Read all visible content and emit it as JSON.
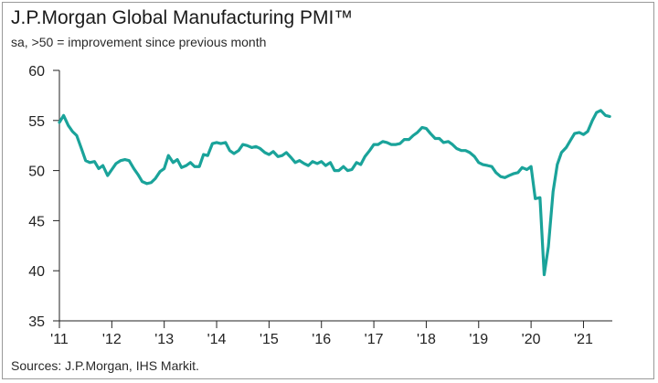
{
  "title": "J.P.Morgan Global Manufacturing PMI™",
  "subtitle": "sa, >50 = improvement since previous month",
  "source": "Sources: J.P.Morgan, IHS Markit.",
  "colors": {
    "line": "#1aa39a",
    "axis": "#222222",
    "frame": "#9a9a9a"
  },
  "chart_data": {
    "type": "line",
    "title": "J.P.Morgan Global Manufacturing PMI™",
    "subtitle": "sa, >50 = improvement since previous month",
    "xlabel": "",
    "ylabel": "",
    "ylim": [
      35,
      60
    ],
    "xlim": [
      2011.0,
      2021.55
    ],
    "yticks": [
      35,
      40,
      45,
      50,
      55,
      60
    ],
    "xticks": [
      {
        "value": 2011,
        "label": "'11"
      },
      {
        "value": 2012,
        "label": "'12"
      },
      {
        "value": 2013,
        "label": "'13"
      },
      {
        "value": 2014,
        "label": "'14"
      },
      {
        "value": 2015,
        "label": "'15"
      },
      {
        "value": 2016,
        "label": "'16"
      },
      {
        "value": 2017,
        "label": "'17"
      },
      {
        "value": 2018,
        "label": "'18"
      },
      {
        "value": 2019,
        "label": "'19"
      },
      {
        "value": 2020,
        "label": "'20"
      },
      {
        "value": 2021,
        "label": "'21"
      }
    ],
    "grid": false,
    "legend": "none",
    "series": [
      {
        "points": [
          [
            2011.0,
            54.8
          ],
          [
            2011.08,
            55.5
          ],
          [
            2011.17,
            54.5
          ],
          [
            2011.25,
            53.9
          ],
          [
            2011.33,
            53.5
          ],
          [
            2011.42,
            52.2
          ],
          [
            2011.5,
            51.0
          ],
          [
            2011.58,
            50.8
          ],
          [
            2011.67,
            50.9
          ],
          [
            2011.75,
            50.2
          ],
          [
            2011.83,
            50.5
          ],
          [
            2011.92,
            49.5
          ],
          [
            2012.0,
            50.1
          ],
          [
            2012.08,
            50.7
          ],
          [
            2012.17,
            51.0
          ],
          [
            2012.25,
            51.1
          ],
          [
            2012.33,
            51.0
          ],
          [
            2012.42,
            50.2
          ],
          [
            2012.5,
            49.6
          ],
          [
            2012.58,
            48.9
          ],
          [
            2012.67,
            48.7
          ],
          [
            2012.75,
            48.8
          ],
          [
            2012.83,
            49.2
          ],
          [
            2012.92,
            49.9
          ],
          [
            2013.0,
            50.2
          ],
          [
            2013.08,
            51.5
          ],
          [
            2013.17,
            50.8
          ],
          [
            2013.25,
            51.1
          ],
          [
            2013.33,
            50.3
          ],
          [
            2013.42,
            50.5
          ],
          [
            2013.5,
            50.8
          ],
          [
            2013.58,
            50.4
          ],
          [
            2013.67,
            50.4
          ],
          [
            2013.75,
            51.6
          ],
          [
            2013.83,
            51.5
          ],
          [
            2013.92,
            52.7
          ],
          [
            2014.0,
            52.8
          ],
          [
            2014.08,
            52.7
          ],
          [
            2014.17,
            52.8
          ],
          [
            2014.25,
            52.0
          ],
          [
            2014.33,
            51.7
          ],
          [
            2014.42,
            52.0
          ],
          [
            2014.5,
            52.6
          ],
          [
            2014.58,
            52.5
          ],
          [
            2014.67,
            52.3
          ],
          [
            2014.75,
            52.4
          ],
          [
            2014.83,
            52.2
          ],
          [
            2014.92,
            51.8
          ],
          [
            2015.0,
            51.6
          ],
          [
            2015.08,
            51.9
          ],
          [
            2015.17,
            51.4
          ],
          [
            2015.25,
            51.5
          ],
          [
            2015.33,
            51.8
          ],
          [
            2015.42,
            51.3
          ],
          [
            2015.5,
            50.8
          ],
          [
            2015.58,
            51.0
          ],
          [
            2015.67,
            50.7
          ],
          [
            2015.75,
            50.5
          ],
          [
            2015.83,
            50.9
          ],
          [
            2015.92,
            50.7
          ],
          [
            2016.0,
            50.9
          ],
          [
            2016.08,
            50.5
          ],
          [
            2016.17,
            50.8
          ],
          [
            2016.25,
            50.0
          ],
          [
            2016.33,
            50.0
          ],
          [
            2016.42,
            50.4
          ],
          [
            2016.5,
            50.0
          ],
          [
            2016.58,
            50.1
          ],
          [
            2016.67,
            50.8
          ],
          [
            2016.75,
            50.6
          ],
          [
            2016.83,
            51.4
          ],
          [
            2016.92,
            52.0
          ],
          [
            2017.0,
            52.6
          ],
          [
            2017.08,
            52.6
          ],
          [
            2017.17,
            52.9
          ],
          [
            2017.25,
            52.8
          ],
          [
            2017.33,
            52.6
          ],
          [
            2017.42,
            52.6
          ],
          [
            2017.5,
            52.7
          ],
          [
            2017.58,
            53.1
          ],
          [
            2017.67,
            53.1
          ],
          [
            2017.75,
            53.5
          ],
          [
            2017.83,
            53.8
          ],
          [
            2017.92,
            54.3
          ],
          [
            2018.0,
            54.2
          ],
          [
            2018.08,
            53.7
          ],
          [
            2018.17,
            53.2
          ],
          [
            2018.25,
            53.2
          ],
          [
            2018.33,
            52.8
          ],
          [
            2018.42,
            52.9
          ],
          [
            2018.5,
            52.6
          ],
          [
            2018.58,
            52.2
          ],
          [
            2018.67,
            52.0
          ],
          [
            2018.75,
            52.0
          ],
          [
            2018.83,
            51.8
          ],
          [
            2018.92,
            51.4
          ],
          [
            2019.0,
            50.8
          ],
          [
            2019.08,
            50.6
          ],
          [
            2019.17,
            50.5
          ],
          [
            2019.25,
            50.4
          ],
          [
            2019.33,
            49.8
          ],
          [
            2019.42,
            49.4
          ],
          [
            2019.5,
            49.3
          ],
          [
            2019.58,
            49.5
          ],
          [
            2019.67,
            49.7
          ],
          [
            2019.75,
            49.8
          ],
          [
            2019.83,
            50.3
          ],
          [
            2019.92,
            50.1
          ],
          [
            2020.0,
            50.4
          ],
          [
            2020.08,
            47.2
          ],
          [
            2020.17,
            47.3
          ],
          [
            2020.25,
            39.6
          ],
          [
            2020.33,
            42.4
          ],
          [
            2020.42,
            47.9
          ],
          [
            2020.5,
            50.6
          ],
          [
            2020.58,
            51.8
          ],
          [
            2020.67,
            52.3
          ],
          [
            2020.75,
            53.0
          ],
          [
            2020.83,
            53.7
          ],
          [
            2020.92,
            53.8
          ],
          [
            2021.0,
            53.6
          ],
          [
            2021.08,
            53.9
          ],
          [
            2021.17,
            55.0
          ],
          [
            2021.25,
            55.8
          ],
          [
            2021.33,
            56.0
          ],
          [
            2021.42,
            55.5
          ],
          [
            2021.5,
            55.4
          ]
        ]
      }
    ]
  }
}
